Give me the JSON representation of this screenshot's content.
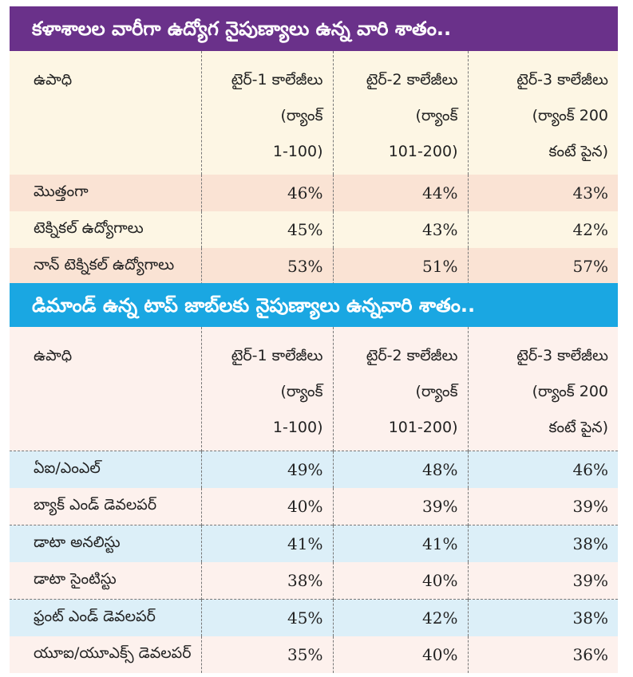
{
  "section1": {
    "title": "కళాశాలల వారీగా ఉద్యోగ నైపుణ్యాలు ఉన్న వారి శాతం..",
    "header": {
      "col0": "ఉపాధి",
      "col1": [
        "టైర్‌-1 కాలేజీలు",
        "(ర్యాంక్‌",
        "1-100)"
      ],
      "col2": [
        "టైర్‌-2 కాలేజీలు",
        "(ర్యాంక్‌",
        "101-200)"
      ],
      "col3": [
        "టైర్‌-3 కాలేజీలు",
        "(ర్యాంక్‌ 200",
        "కంటే పైన)"
      ]
    },
    "rows": [
      {
        "label": "మొత్తంగా",
        "t1": "46%",
        "t2": "44%",
        "t3": "43%"
      },
      {
        "label": "టెక్నికల్‌ ఉద్యోగాలు",
        "t1": "45%",
        "t2": "43%",
        "t3": "42%"
      },
      {
        "label": "నాన్‌ టెక్నికల్‌ ఉద్యోగాలు",
        "t1": "53%",
        "t2": "51%",
        "t3": "57%"
      }
    ]
  },
  "section2": {
    "title": "డిమాండ్‌ ఉన్న టాప్‌ జాబ్‌లకు నైపుణ్యాలు ఉన్నవారి శాతం..",
    "header": {
      "col0": "ఉపాధి",
      "col1": [
        "టైర్‌-1 కాలేజీలు",
        "(ర్యాంక్‌",
        "1-100)"
      ],
      "col2": [
        "టైర్‌-2 కాలేజీలు",
        "(ర్యాంక్‌",
        "101-200)"
      ],
      "col3": [
        "టైర్‌-3 కాలేజీలు",
        "(ర్యాంక్‌ 200",
        "కంటే పైన)"
      ]
    },
    "rows": [
      {
        "label": "ఏఐ/ఎంఎల్‌",
        "t1": "49%",
        "t2": "48%",
        "t3": "46%"
      },
      {
        "label": "బ్యాక్‌ ఎండ్‌ డెవలపర్‌",
        "t1": "40%",
        "t2": "39%",
        "t3": "39%"
      },
      {
        "label": "డాటా అనలిస్టు",
        "t1": "41%",
        "t2": "41%",
        "t3": "38%"
      },
      {
        "label": "డాటా సైంటిస్టు",
        "t1": "38%",
        "t2": "40%",
        "t3": "39%"
      },
      {
        "label": "ఫ్రంట్‌ ఎండ్‌ డెవలపర్‌",
        "t1": "45%",
        "t2": "42%",
        "t3": "38%"
      },
      {
        "label": "యూఐ/యూఎక్స్‌ డెవలపర్‌",
        "t1": "35%",
        "t2": "40%",
        "t3": "36%"
      }
    ]
  }
}
